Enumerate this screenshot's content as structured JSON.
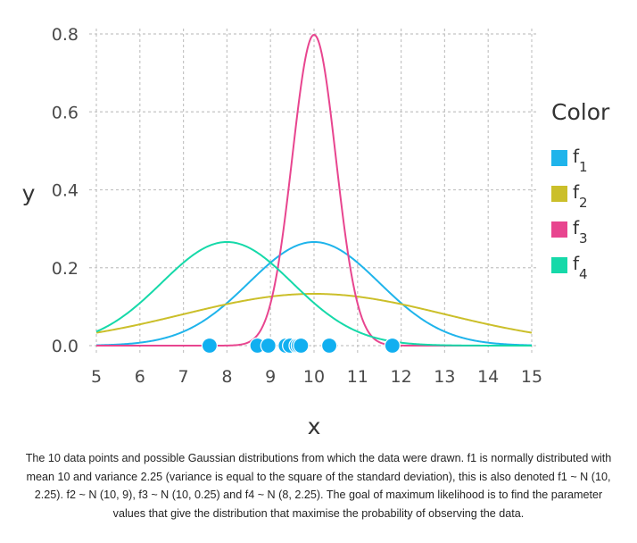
{
  "chart_data": {
    "type": "line",
    "xlabel": "x",
    "ylabel": "y",
    "xlim": [
      5,
      15
    ],
    "ylim": [
      0,
      0.8
    ],
    "xticks": [
      "5",
      "6",
      "7",
      "8",
      "9",
      "10",
      "11",
      "12",
      "13",
      "14",
      "15"
    ],
    "yticks": [
      "0.0",
      "0.2",
      "0.4",
      "0.6",
      "0.8"
    ],
    "grid": true,
    "legend": {
      "title": "Color",
      "placement": "right",
      "entries": [
        {
          "base": "f",
          "sub": "1"
        },
        {
          "base": "f",
          "sub": "2"
        },
        {
          "base": "f",
          "sub": "3"
        },
        {
          "base": "f",
          "sub": "4"
        }
      ]
    },
    "series": [
      {
        "name": "f1",
        "distribution": "normal",
        "mean": 10,
        "variance": 2.25,
        "color": "#1fb4eb"
      },
      {
        "name": "f2",
        "distribution": "normal",
        "mean": 10,
        "variance": 9,
        "color": "#cbbf2a"
      },
      {
        "name": "f3",
        "distribution": "normal",
        "mean": 10,
        "variance": 0.25,
        "color": "#e8458f"
      },
      {
        "name": "f4",
        "distribution": "normal",
        "mean": 8,
        "variance": 2.25,
        "color": "#16d9a9"
      }
    ],
    "points": {
      "color": "#11aff0",
      "x": [
        7.6,
        8.7,
        8.95,
        9.35,
        9.45,
        9.6,
        9.65,
        9.7,
        10.35,
        11.8
      ],
      "y": [
        0,
        0,
        0,
        0,
        0,
        0,
        0,
        0,
        0,
        0
      ]
    }
  },
  "caption": "The 10 data points and possible Gaussian distributions from which the data were drawn. f1 is normally distributed with mean 10 and variance 2.25 (variance is equal to the square of the standard deviation), this is also denoted f1 ~ N (10, 2.25). f2 ~ N (10, 9), f3 ~ N (10, 0.25) and f4 ~ N (8, 2.25). The goal of maximum likelihood is to find the parameter values that give the distribution that maximise the probability of observing the data."
}
